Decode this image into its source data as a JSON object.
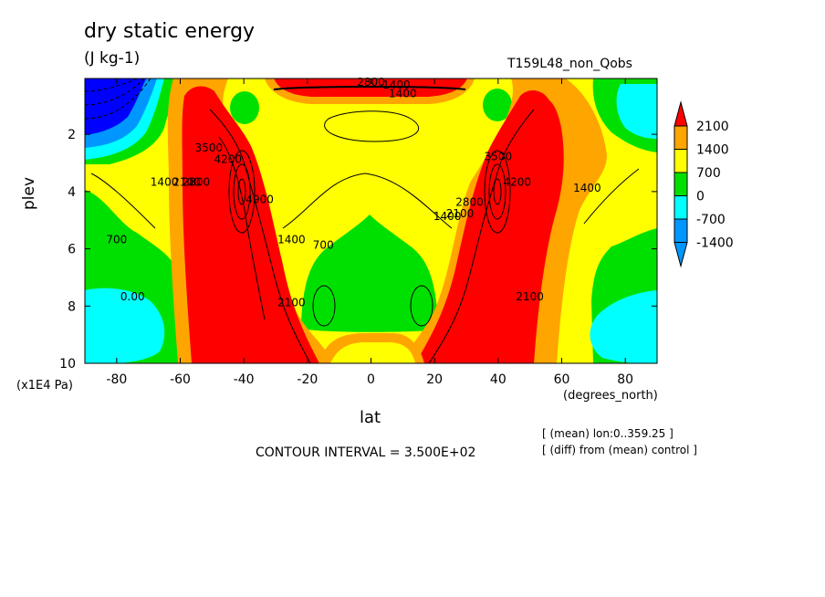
{
  "header": {
    "title": "dry static energy",
    "units": "(J kg-1)",
    "run_name": "T159L48_non_Qobs"
  },
  "footer": {
    "contour_interval": "CONTOUR INTERVAL = 3.500E+02",
    "note_mean": "[ (mean) lon:0..359.25 ]",
    "note_diff": "[ (diff) from (mean) control ]"
  },
  "chart_data": {
    "type": "heatmap",
    "title": "dry static energy",
    "subtitle": "(J kg-1)",
    "xlabel": "lat",
    "x_units": "(degrees_north)",
    "ylabel": "plev",
    "y_units": "(x1E4 Pa)",
    "xlim": [
      -90,
      90
    ],
    "ylim": [
      10,
      0.05
    ],
    "x_ticks": [
      -80,
      -60,
      -40,
      -20,
      0,
      20,
      40,
      60,
      80
    ],
    "x_tick_labels": [
      "-80",
      "-60",
      "-40",
      "-20",
      "0",
      "20",
      "40",
      "60",
      "80"
    ],
    "y_ticks": [
      2,
      4,
      6,
      8,
      10
    ],
    "y_tick_labels": [
      "2",
      "4",
      "6",
      "8",
      "10"
    ],
    "contour_interval": 350,
    "legend": {
      "position": "right",
      "levels": [
        "2100",
        "1400",
        "700",
        "0",
        "-700",
        "-1400"
      ],
      "colors": {
        "above_2100": "#ff0000",
        "1400_2100": "#ffa500",
        "700_1400": "#ffff00",
        "0_700": "#00e000",
        "-700_0": "#00ffff",
        "-1400_-700": "#0096ff",
        "below_-1400": "#0000ff"
      }
    },
    "features": [
      {
        "description": "southern positive maximum",
        "lat": -40,
        "plev": 4,
        "value": 4900
      },
      {
        "description": "northern positive maximum",
        "lat": 40,
        "plev": 4,
        "value": 4200
      },
      {
        "description": "south polar stratospheric negative",
        "lat": -85,
        "plev": 0.5,
        "value": -1400
      },
      {
        "description": "upper-level equatorial maximum",
        "lat": 0,
        "plev": 0.1,
        "value": 2800
      }
    ],
    "contour_labels": [
      {
        "text": "2800",
        "lat": 0,
        "plev": 0.3
      },
      {
        "text": "1400",
        "lat": 8,
        "plev": 0.4
      },
      {
        "text": "1400",
        "lat": 10,
        "plev": 0.7
      },
      {
        "text": "4200",
        "lat": -45,
        "plev": 3.0
      },
      {
        "text": "3500",
        "lat": -51,
        "plev": 2.6
      },
      {
        "text": "4900",
        "lat": -35,
        "plev": 4.4
      },
      {
        "text": "2800",
        "lat": -55,
        "plev": 3.8
      },
      {
        "text": "2100",
        "lat": -58,
        "plev": 3.8
      },
      {
        "text": "1400",
        "lat": -65,
        "plev": 3.8
      },
      {
        "text": "700",
        "lat": -80,
        "plev": 5.8
      },
      {
        "text": "1400",
        "lat": -25,
        "plev": 5.8
      },
      {
        "text": "700",
        "lat": -15,
        "plev": 6.0
      },
      {
        "text": "2100",
        "lat": -25,
        "plev": 8.0
      },
      {
        "text": "0.00",
        "lat": -75,
        "plev": 7.8
      },
      {
        "text": "3500",
        "lat": 40,
        "plev": 2.9
      },
      {
        "text": "4200",
        "lat": 46,
        "plev": 3.8
      },
      {
        "text": "2800",
        "lat": 31,
        "plev": 4.5
      },
      {
        "text": "2100",
        "lat": 28,
        "plev": 4.9
      },
      {
        "text": "1400",
        "lat": 24,
        "plev": 5.0
      },
      {
        "text": "1400",
        "lat": 68,
        "plev": 4.0
      },
      {
        "text": "2100",
        "lat": 50,
        "plev": 7.8
      }
    ]
  }
}
